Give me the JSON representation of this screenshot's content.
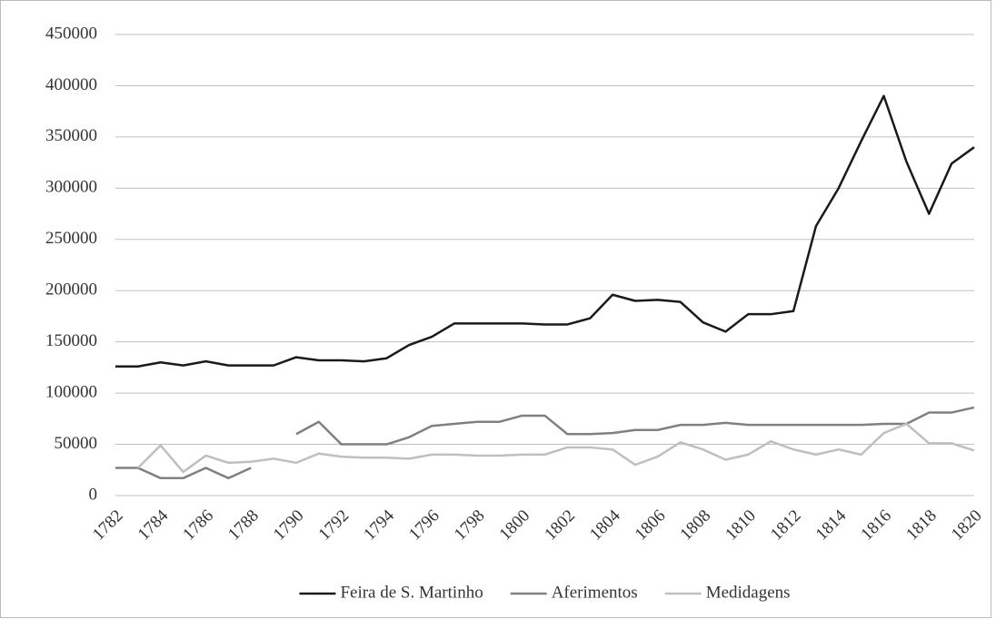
{
  "chart_data": {
    "type": "line",
    "x": [
      1782,
      1783,
      1784,
      1785,
      1786,
      1787,
      1788,
      1789,
      1790,
      1791,
      1792,
      1793,
      1794,
      1795,
      1796,
      1797,
      1798,
      1799,
      1800,
      1801,
      1802,
      1803,
      1804,
      1805,
      1806,
      1807,
      1808,
      1809,
      1810,
      1811,
      1812,
      1813,
      1814,
      1815,
      1816,
      1817,
      1818,
      1819,
      1820
    ],
    "xlim": [
      1782,
      1820
    ],
    "xticks": [
      1782,
      1784,
      1786,
      1788,
      1790,
      1792,
      1794,
      1796,
      1798,
      1800,
      1802,
      1804,
      1806,
      1808,
      1810,
      1812,
      1814,
      1816,
      1818,
      1820
    ],
    "ylim": [
      0,
      450000
    ],
    "yticks": [
      0,
      50000,
      100000,
      150000,
      200000,
      250000,
      300000,
      350000,
      400000,
      450000
    ],
    "grid": true,
    "legend": "bottom",
    "series": [
      {
        "name": "Feira de S. Martinho",
        "color": "#1a1a1a",
        "values": [
          126000,
          126000,
          130000,
          127000,
          131000,
          127000,
          127000,
          127000,
          135000,
          132000,
          132000,
          131000,
          134000,
          147000,
          155000,
          168000,
          168000,
          168000,
          168000,
          167000,
          167000,
          173000,
          196000,
          190000,
          191000,
          189000,
          169000,
          160000,
          177000,
          177000,
          180000,
          263000,
          300000,
          346000,
          390000,
          326000,
          275000,
          324000,
          340000
        ]
      },
      {
        "name": "Aferimentos",
        "color": "#808080",
        "values": [
          27000,
          27000,
          17000,
          17000,
          27000,
          17000,
          27000,
          null,
          60000,
          72000,
          50000,
          50000,
          50000,
          57000,
          68000,
          70000,
          72000,
          72000,
          78000,
          78000,
          60000,
          60000,
          61000,
          64000,
          64000,
          69000,
          69000,
          71000,
          69000,
          69000,
          69000,
          69000,
          69000,
          69000,
          70000,
          70000,
          81000,
          81000,
          86000
        ]
      },
      {
        "name": "Medidagens",
        "color": "#bfbfbf",
        "values": [
          null,
          27000,
          49000,
          23000,
          39000,
          32000,
          33000,
          36000,
          32000,
          41000,
          38000,
          37000,
          37000,
          36000,
          40000,
          40000,
          39000,
          39000,
          40000,
          40000,
          47000,
          47000,
          45000,
          30000,
          38000,
          52000,
          45000,
          35000,
          40000,
          53000,
          45000,
          40000,
          45000,
          40000,
          61000,
          70000,
          51000,
          51000,
          44000
        ]
      }
    ]
  }
}
